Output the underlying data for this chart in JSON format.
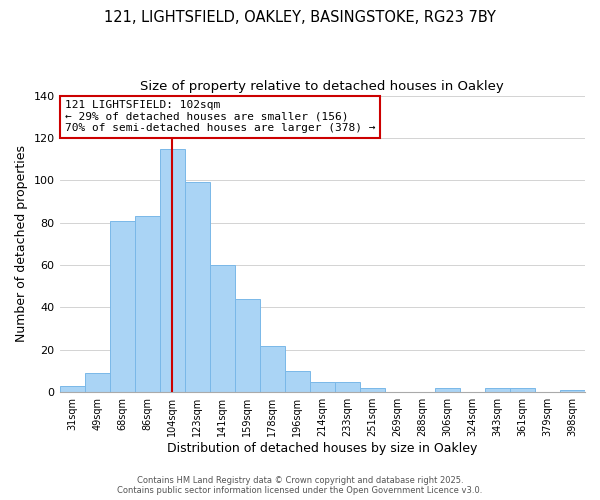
{
  "title_line1": "121, LIGHTSFIELD, OAKLEY, BASINGSTOKE, RG23 7BY",
  "title_line2": "Size of property relative to detached houses in Oakley",
  "xlabel": "Distribution of detached houses by size in Oakley",
  "ylabel": "Number of detached properties",
  "categories": [
    "31sqm",
    "49sqm",
    "68sqm",
    "86sqm",
    "104sqm",
    "123sqm",
    "141sqm",
    "159sqm",
    "178sqm",
    "196sqm",
    "214sqm",
    "233sqm",
    "251sqm",
    "269sqm",
    "288sqm",
    "306sqm",
    "324sqm",
    "343sqm",
    "361sqm",
    "379sqm",
    "398sqm"
  ],
  "values": [
    3,
    9,
    81,
    83,
    115,
    99,
    60,
    44,
    22,
    10,
    5,
    5,
    2,
    0,
    0,
    2,
    0,
    2,
    2,
    0,
    1
  ],
  "bar_color": "#aad4f5",
  "bar_edge_color": "#7ab8e8",
  "vline_x_index": 4,
  "vline_color": "#cc0000",
  "annotation_title": "121 LIGHTSFIELD: 102sqm",
  "annotation_line2": "← 29% of detached houses are smaller (156)",
  "annotation_line3": "70% of semi-detached houses are larger (378) →",
  "annotation_box_color": "#ffffff",
  "annotation_box_edge": "#cc0000",
  "ylim": [
    0,
    140
  ],
  "yticks": [
    0,
    20,
    40,
    60,
    80,
    100,
    120,
    140
  ],
  "footer_line1": "Contains HM Land Registry data © Crown copyright and database right 2025.",
  "footer_line2": "Contains public sector information licensed under the Open Government Licence v3.0.",
  "background_color": "#ffffff",
  "grid_color": "#cccccc",
  "title_fontsize": 10.5,
  "subtitle_fontsize": 9.5
}
